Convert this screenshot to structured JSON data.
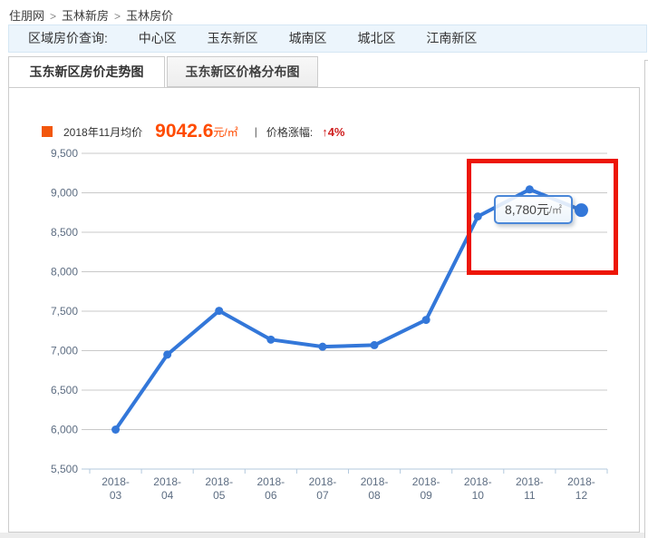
{
  "breadcrumb": {
    "separator": ">",
    "items": [
      "住朋网",
      "玉林新房",
      "玉林房价"
    ]
  },
  "region_nav": {
    "label": "区域房价查询:",
    "links": [
      "中心区",
      "玉东新区",
      "城南区",
      "城北区",
      "江南新区"
    ]
  },
  "tabs": [
    {
      "label": "玉东新区房价走势图",
      "active": true
    },
    {
      "label": "玉东新区价格分布图",
      "active": false
    }
  ],
  "stats": {
    "period_label": "2018年11月均价",
    "avg_price": "9042.6",
    "unit": "元/㎡",
    "divider": "|",
    "change_label": "价格涨幅:",
    "change_value": "↑4%"
  },
  "tooltip": {
    "value": "8,780元",
    "unit": "/㎡"
  },
  "chart_data": {
    "type": "line",
    "title": "玉东新区房价走势图",
    "categories": [
      "2018-03",
      "2018-04",
      "2018-05",
      "2018-06",
      "2018-07",
      "2018-08",
      "2018-09",
      "2018-10",
      "2018-11",
      "2018-12"
    ],
    "values": [
      6000,
      6950,
      7505,
      7140,
      7050,
      7070,
      7390,
      8700,
      9042.6,
      8780
    ],
    "ylim": [
      5500,
      9500
    ],
    "ytick_step": 500,
    "unit": "元/㎡",
    "grid": true,
    "line_color": "#3377d9",
    "grid_color": "#c9c9c9",
    "axis_color": "#b3c9de",
    "tick_label_color": "#5d6d82",
    "highlight_color": "#ed1607",
    "tooltip_border_color": "#4a87d8"
  }
}
